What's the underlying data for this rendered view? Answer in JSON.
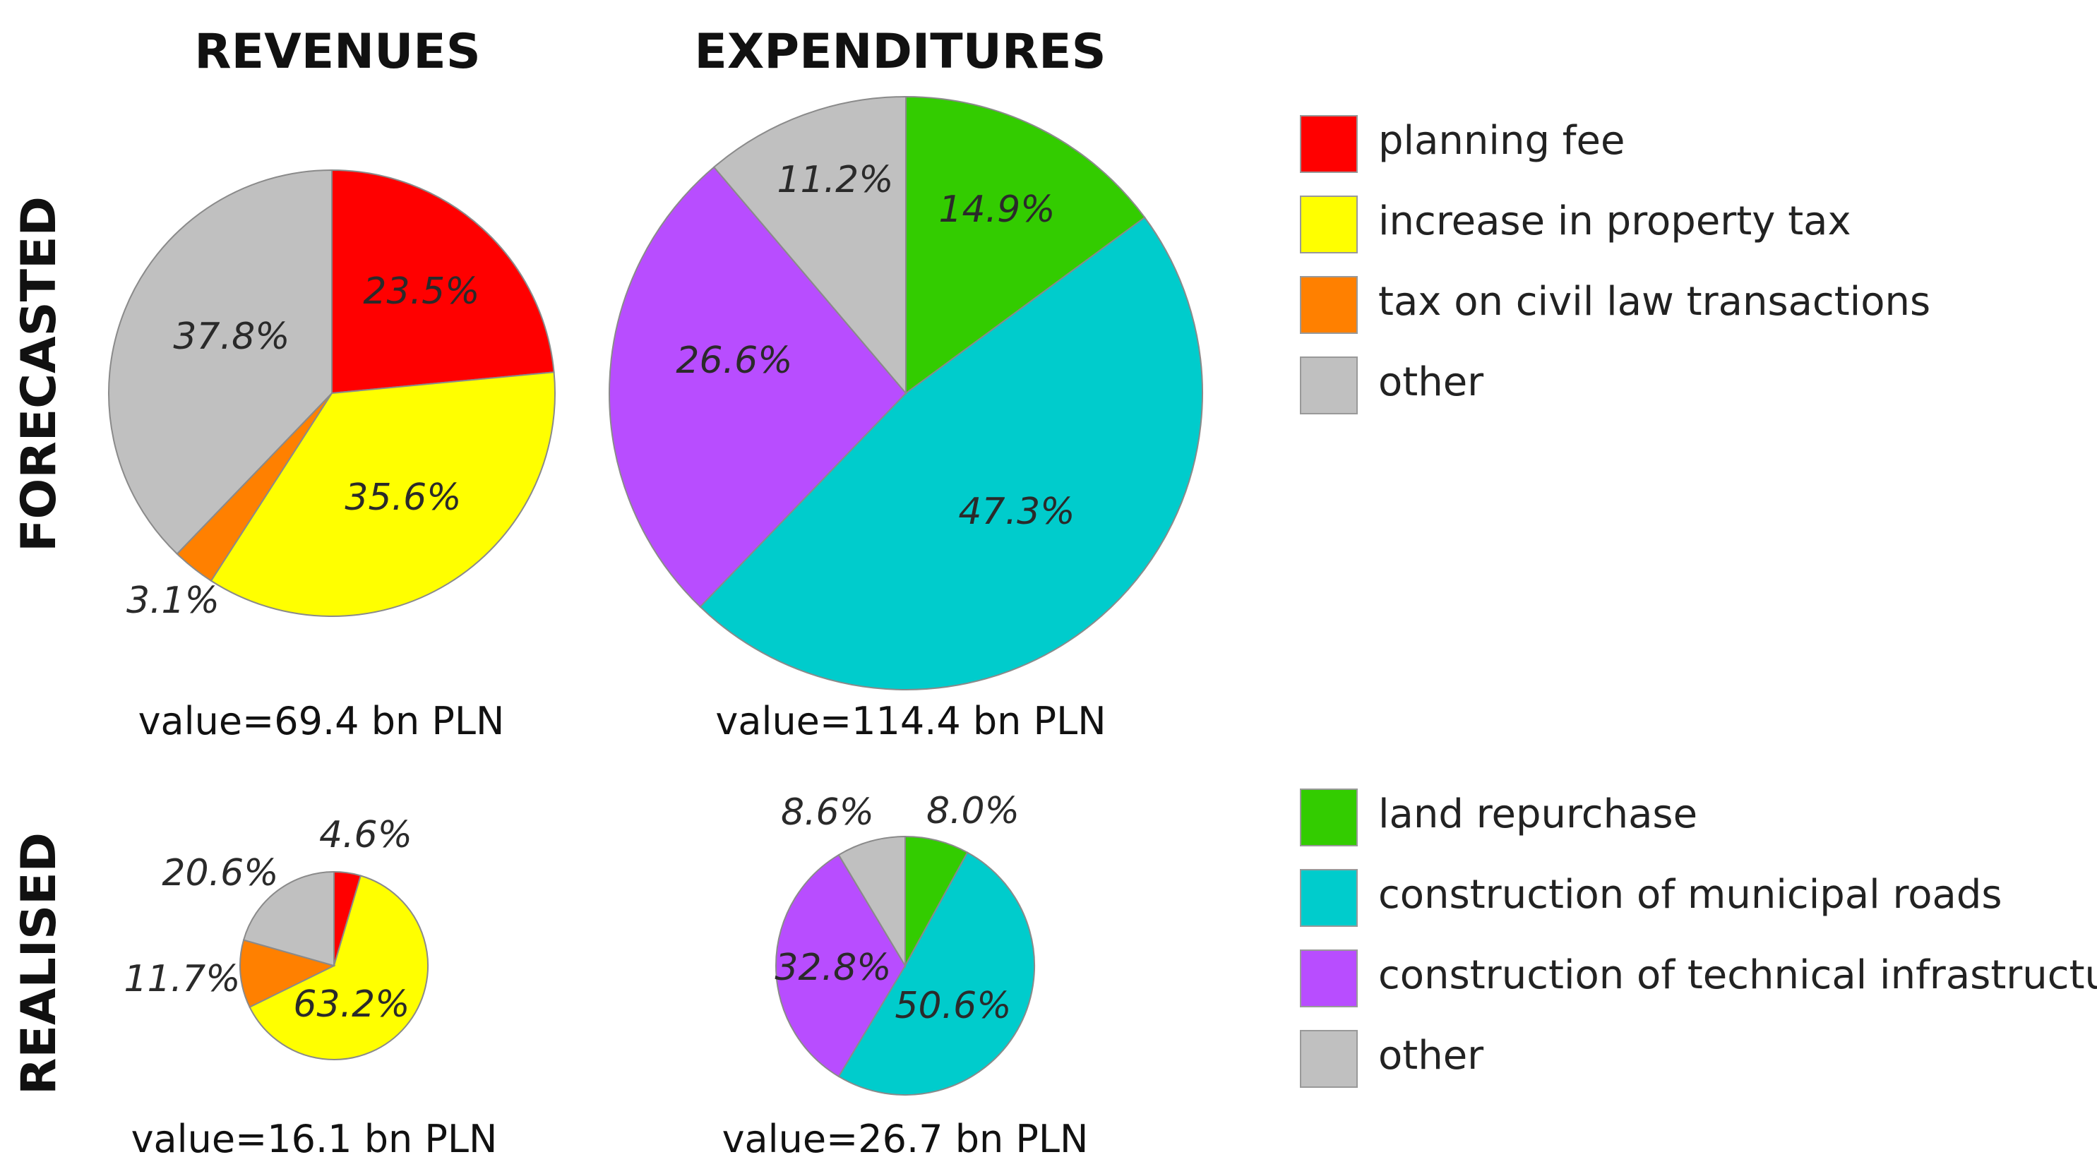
{
  "headers": {
    "revenues": "REVENUES",
    "expenditures": "EXPENDITURES",
    "forecasted": "FORECASTED",
    "realised": "REALISED"
  },
  "colors": {
    "planning_fee": "#ff0000",
    "property_tax": "#ffff00",
    "civil_law": "#ff8000",
    "other": "#c0c0c0",
    "land_repurchase": "#33cc00",
    "municipal_roads": "#00cccc",
    "technical_infra": "#b84dff"
  },
  "legend_revenues": [
    {
      "label": "planning fee",
      "color": "#ff0000"
    },
    {
      "label": "increase in property tax",
      "color": "#ffff00"
    },
    {
      "label": "tax on civil law transactions",
      "color": "#ff8000"
    },
    {
      "label": "other",
      "color": "#c0c0c0"
    }
  ],
  "legend_expenditures": [
    {
      "label": "land repurchase",
      "color": "#33cc00"
    },
    {
      "label": "construction of municipal roads",
      "color": "#00cccc"
    },
    {
      "label": "construction of technical infrastructure",
      "color": "#b84dff"
    },
    {
      "label": "other",
      "color": "#c0c0c0"
    }
  ],
  "chart_data": [
    {
      "type": "pie",
      "id": "rev-forecast",
      "title": "REVENUES",
      "row": "FORECASTED",
      "total_label": "value=69.4 bn PLN",
      "slices": [
        {
          "label": "planning fee",
          "value": 23.5,
          "display": "23.5%",
          "color": "#ff0000"
        },
        {
          "label": "increase in property tax",
          "value": 35.6,
          "display": "35.6%",
          "color": "#ffff00"
        },
        {
          "label": "tax on civil law transactions",
          "value": 3.1,
          "display": "3.1%",
          "color": "#ff8000"
        },
        {
          "label": "other",
          "value": 37.8,
          "display": "37.8%",
          "color": "#c0c0c0"
        }
      ]
    },
    {
      "type": "pie",
      "id": "exp-forecast",
      "title": "EXPENDITURES",
      "row": "FORECASTED",
      "total_label": "value=114.4 bn PLN",
      "slices": [
        {
          "label": "land repurchase",
          "value": 14.9,
          "display": "14.9%",
          "color": "#33cc00"
        },
        {
          "label": "construction of municipal roads",
          "value": 47.3,
          "display": "47.3%",
          "color": "#00cccc"
        },
        {
          "label": "construction of technical infrastructure",
          "value": 26.6,
          "display": "26.6%",
          "color": "#b84dff"
        },
        {
          "label": "other",
          "value": 11.2,
          "display": "11.2%",
          "color": "#c0c0c0"
        }
      ]
    },
    {
      "type": "pie",
      "id": "rev-realised",
      "title": "REVENUES",
      "row": "REALISED",
      "total_label": "value=16.1 bn PLN",
      "slices": [
        {
          "label": "planning fee",
          "value": 4.6,
          "display": "4.6%",
          "color": "#ff0000"
        },
        {
          "label": "increase in property tax",
          "value": 63.2,
          "display": "63.2%",
          "color": "#ffff00"
        },
        {
          "label": "tax on civil law transactions",
          "value": 11.7,
          "display": "11.7%",
          "color": "#ff8000"
        },
        {
          "label": "other",
          "value": 20.6,
          "display": "20.6%",
          "color": "#c0c0c0"
        }
      ]
    },
    {
      "type": "pie",
      "id": "exp-realised",
      "title": "EXPENDITURES",
      "row": "REALISED",
      "total_label": "value=26.7 bn PLN",
      "slices": [
        {
          "label": "land repurchase",
          "value": 8.0,
          "display": "8.0%",
          "color": "#33cc00"
        },
        {
          "label": "construction of municipal roads",
          "value": 50.6,
          "display": "50.6%",
          "color": "#00cccc"
        },
        {
          "label": "construction of technical infrastructure",
          "value": 32.8,
          "display": "32.8%",
          "color": "#b84dff"
        },
        {
          "label": "other",
          "value": 8.6,
          "display": "8.6%",
          "color": "#c0c0c0"
        }
      ]
    }
  ]
}
